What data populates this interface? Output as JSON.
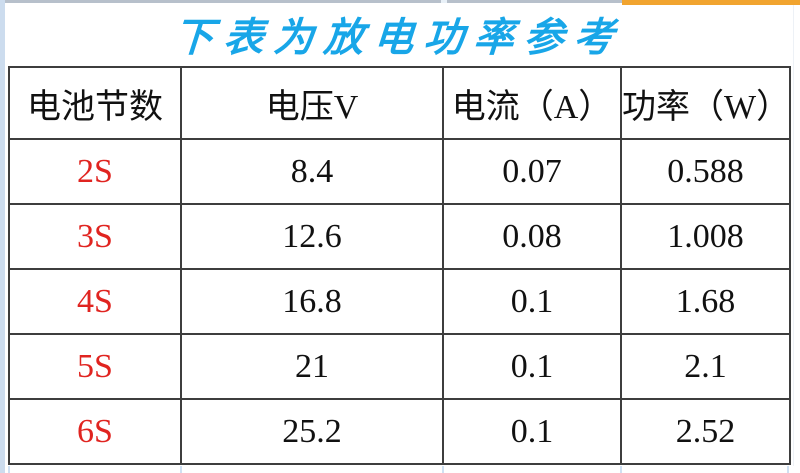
{
  "page": {
    "title": "下表为放电功率参考"
  },
  "colors": {
    "title_blue": "#18A6E8",
    "battery_label_red": "#E02420",
    "table_border_dark": "#3D3D3D",
    "top_right_accent_orange": "#F1A42F",
    "grid_edge_light_blue": "#CCDCEE"
  },
  "table": {
    "headers": [
      "电池节数",
      "电压V",
      "电流（A）",
      "功率（W）"
    ],
    "rows": [
      [
        "2S",
        "8.4",
        "0.07",
        "0.588"
      ],
      [
        "3S",
        "12.6",
        "0.08",
        "1.008"
      ],
      [
        "4S",
        "16.8",
        "0.1",
        "1.68"
      ],
      [
        "5S",
        "21",
        "0.1",
        "2.1"
      ],
      [
        "6S",
        "25.2",
        "0.1",
        "2.52"
      ]
    ]
  },
  "chart_data": {
    "type": "table",
    "title": "下表为放电功率参考",
    "columns": [
      "电池节数",
      "电压V",
      "电流（A）",
      "功率（W）"
    ],
    "rows": [
      [
        "2S",
        "8.4",
        "0.07",
        "0.588"
      ],
      [
        "3S",
        "12.6",
        "0.08",
        "1.008"
      ],
      [
        "4S",
        "16.8",
        "0.1",
        "1.68"
      ],
      [
        "5S",
        "21",
        "0.1",
        "2.1"
      ],
      [
        "6S",
        "25.2",
        "0.1",
        "2.52"
      ]
    ],
    "numeric": {
      "battery_cells": [
        "2S",
        "3S",
        "4S",
        "5S",
        "6S"
      ],
      "voltage_v": [
        8.4,
        12.6,
        16.8,
        21,
        25.2
      ],
      "current_a": [
        0.07,
        0.08,
        0.1,
        0.1,
        0.1
      ],
      "power_w": [
        0.588,
        1.008,
        1.68,
        2.1,
        2.52
      ]
    }
  }
}
